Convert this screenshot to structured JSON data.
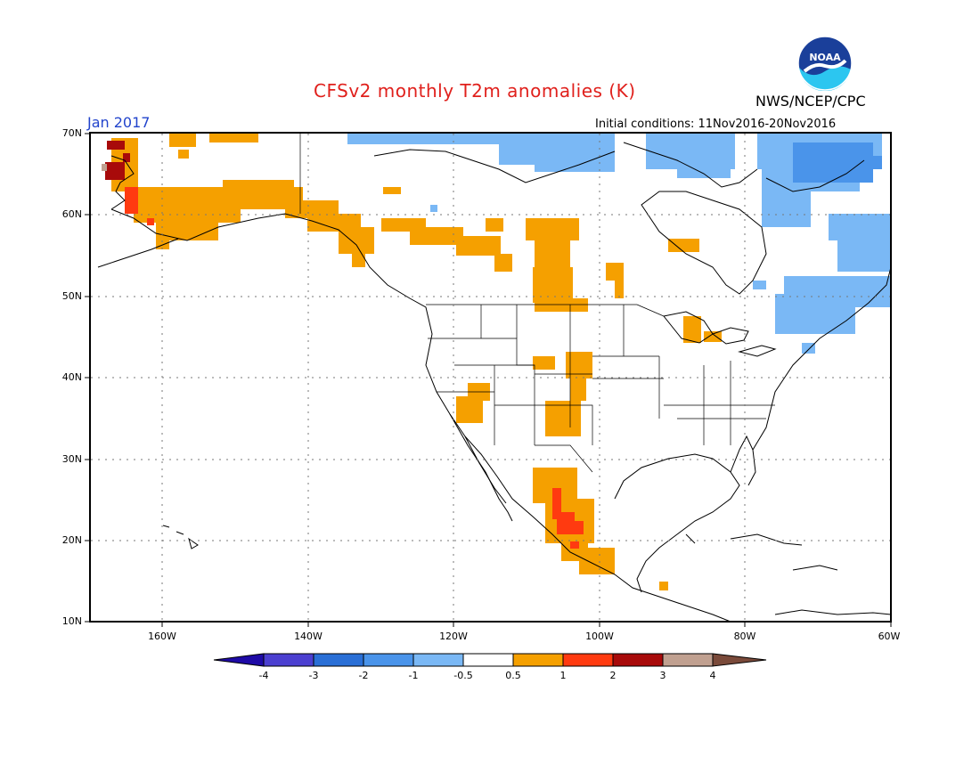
{
  "header": {
    "title": "CFSv2 monthly T2m anomalies (K)",
    "agency": "NWS/NCEP/CPC",
    "valid_month": "Jan 2017",
    "initial_conditions": "Initial conditions: 11Nov2016-20Nov2016"
  },
  "logo": {
    "text": "NOAA",
    "icon": "noaa-logo-icon"
  },
  "axes": {
    "lat_labels": [
      "70N",
      "60N",
      "50N",
      "40N",
      "30N",
      "20N",
      "10N"
    ],
    "lon_labels": [
      "160W",
      "140W",
      "120W",
      "100W",
      "80W",
      "60W"
    ]
  },
  "colorbar": {
    "labels": [
      "-4",
      "-3",
      "-2",
      "-1",
      "-0.5",
      "0.5",
      "1",
      "2",
      "3",
      "4"
    ],
    "colors": [
      "#1e0aa6",
      "#4b3fd0",
      "#2a6fd6",
      "#4a94ea",
      "#7ab8f5",
      "#ffffff",
      "#f5a000",
      "#ff3a10",
      "#a80a0a",
      "#c0a090",
      "#7a4a3a"
    ]
  },
  "legend_classes": {
    "light_blue": "#7ab8f5",
    "blue": "#4a94ea",
    "orange": "#f5a000",
    "red": "#ff3a10",
    "dark_red": "#a80a0a",
    "tan": "#c0a090"
  }
}
